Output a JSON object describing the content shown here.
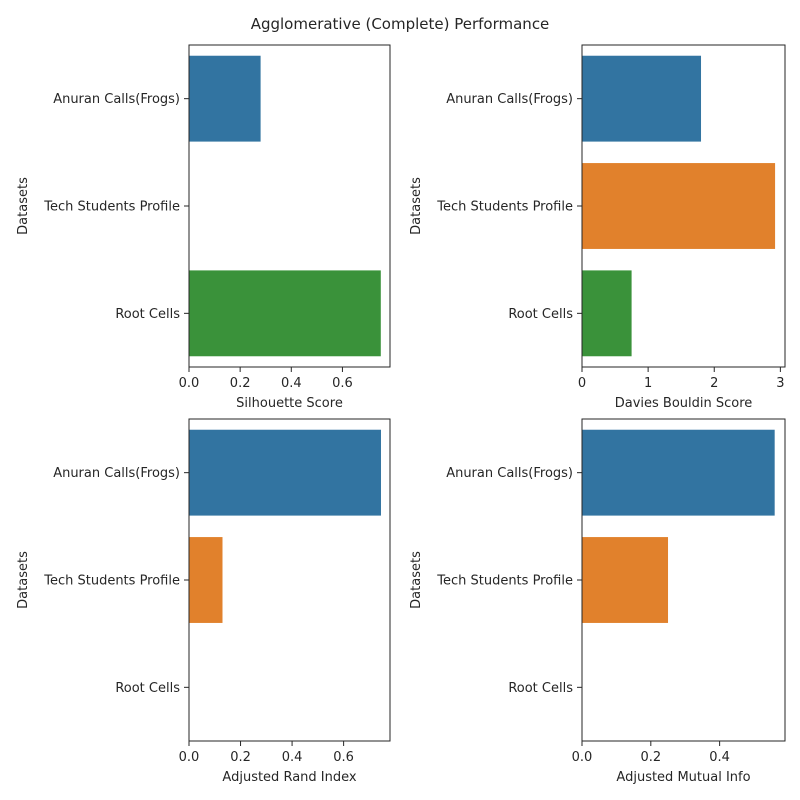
{
  "title": "Agglomerative (Complete) Performance",
  "colors": [
    "#3274a1",
    "#e1812c",
    "#3a923a"
  ],
  "chart_data": [
    {
      "type": "bar",
      "orientation": "horizontal",
      "categories": [
        "Anuran Calls(Frogs)",
        "Tech Students Profile",
        "Root Cells"
      ],
      "values": [
        0.28,
        0.0,
        0.75
      ],
      "xlabel": "Silhouette Score",
      "ylabel": "Datasets",
      "xlim": [
        0,
        0.786
      ],
      "xticks": [
        0.0,
        0.2,
        0.4,
        0.6
      ],
      "xtick_labels": [
        "0.0",
        "0.2",
        "0.4",
        "0.6"
      ],
      "grid": false
    },
    {
      "type": "bar",
      "orientation": "horizontal",
      "categories": [
        "Anuran Calls(Frogs)",
        "Tech Students Profile",
        "Root Cells"
      ],
      "values": [
        1.8,
        2.92,
        0.75
      ],
      "xlabel": "Davies Bouldin Score",
      "ylabel": "Datasets",
      "xlim": [
        0,
        3.07
      ],
      "xticks": [
        0,
        1,
        2,
        3
      ],
      "xtick_labels": [
        "0",
        "1",
        "2",
        "3"
      ],
      "grid": false
    },
    {
      "type": "bar",
      "orientation": "horizontal",
      "categories": [
        "Anuran Calls(Frogs)",
        "Tech Students Profile",
        "Root Cells"
      ],
      "values": [
        0.745,
        0.13,
        0.0
      ],
      "xlabel": "Adjusted Rand Index",
      "ylabel": "Datasets",
      "xlim": [
        0,
        0.78
      ],
      "xticks": [
        0.0,
        0.2,
        0.4,
        0.6
      ],
      "xtick_labels": [
        "0.0",
        "0.2",
        "0.4",
        "0.6"
      ],
      "grid": false
    },
    {
      "type": "bar",
      "orientation": "horizontal",
      "categories": [
        "Anuran Calls(Frogs)",
        "Tech Students Profile",
        "Root Cells"
      ],
      "values": [
        0.56,
        0.25,
        0.0
      ],
      "xlabel": "Adjusted Mutual Info",
      "ylabel": "Datasets",
      "xlim": [
        0,
        0.59
      ],
      "xticks": [
        0.0,
        0.2,
        0.4
      ],
      "xtick_labels": [
        "0.0",
        "0.2",
        "0.4"
      ],
      "grid": false
    }
  ]
}
